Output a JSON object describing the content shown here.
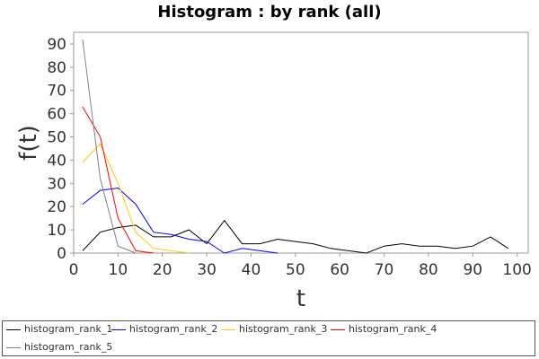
{
  "chart_data": {
    "type": "line",
    "title": "Histogram : by rank (all)",
    "xlabel": "t",
    "ylabel": "f(t)",
    "xlim": [
      0,
      100
    ],
    "ylim": [
      0,
      95
    ],
    "xticks": [
      0,
      10,
      20,
      30,
      40,
      50,
      60,
      70,
      80,
      90,
      100
    ],
    "yticks": [
      0,
      10,
      20,
      30,
      40,
      50,
      60,
      70,
      80,
      90
    ],
    "grid": false,
    "legend_position": "bottom",
    "series": [
      {
        "name": "histogram_rank_1",
        "color": "#000000",
        "x": [
          2,
          6,
          10,
          14,
          18,
          22,
          26,
          30,
          34,
          38,
          42,
          46,
          50,
          54,
          58,
          62,
          66,
          70,
          74,
          78,
          82,
          86,
          90,
          94,
          98
        ],
        "y": [
          1,
          9,
          11,
          12,
          7,
          7,
          10,
          4,
          14,
          4,
          4,
          6,
          5,
          4,
          2,
          1,
          0,
          3,
          4,
          3,
          3,
          2,
          3,
          7,
          2
        ]
      },
      {
        "name": "histogram_rank_2",
        "color": "#0000ff",
        "x": [
          2,
          6,
          10,
          14,
          18,
          22,
          26,
          30,
          34,
          38,
          42,
          46
        ],
        "y": [
          21,
          27,
          28,
          21,
          9,
          8,
          6,
          5,
          0,
          2,
          1,
          0
        ]
      },
      {
        "name": "histogram_rank_3",
        "color": "#ffcc00",
        "x": [
          2,
          6,
          10,
          14,
          18,
          22,
          26
        ],
        "y": [
          39,
          47,
          30,
          9,
          2,
          1,
          0
        ]
      },
      {
        "name": "histogram_rank_4",
        "color": "#ff0000",
        "x": [
          2,
          6,
          10,
          14,
          18
        ],
        "y": [
          63,
          50,
          15,
          1,
          0
        ]
      },
      {
        "name": "histogram_rank_5",
        "color": "#808080",
        "x": [
          2,
          6,
          10,
          14
        ],
        "y": [
          92,
          32,
          3,
          0
        ]
      }
    ]
  }
}
